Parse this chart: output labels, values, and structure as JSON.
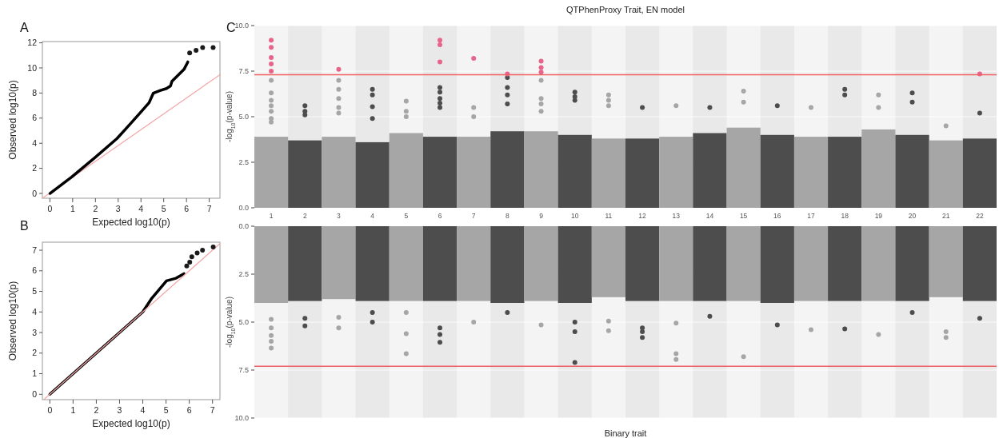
{
  "chart_data": [
    {
      "type": "scatter",
      "xlabel": "Expected log10(p)",
      "ylabel": "Observed log10(p)",
      "annotations": [
        "A"
      ],
      "xlim": [
        -0.33,
        7.47
      ],
      "ylim": [
        -0.38,
        12.1
      ],
      "xticks": [
        0,
        1,
        2,
        3,
        4,
        5,
        6,
        7
      ],
      "yticks": [
        0,
        2,
        4,
        6,
        8,
        10,
        12
      ],
      "grid": false,
      "series": [
        {
          "type": "line",
          "color": "#f4a6a6",
          "x": [
            -0.33,
            7.47
          ],
          "values": [
            -0.38,
            9.46
          ]
        },
        {
          "type": "line",
          "color": "#000000",
          "x": [
            0,
            0.96,
            1.97,
            2.95,
            3.48,
            3.95,
            4.36,
            4.54,
            4.83,
            5.12,
            5.3,
            5.36,
            5.59,
            5.89,
            6.06
          ],
          "values": [
            0,
            1.31,
            2.84,
            4.38,
            5.44,
            6.39,
            7.24,
            7.98,
            8.19,
            8.36,
            8.57,
            8.93,
            9.35,
            9.88,
            10.48
          ]
        },
        {
          "color": "#1a1a1a",
          "x": [
            6.14,
            6.42,
            6.71,
            7.17
          ],
          "values": [
            11.2,
            11.4,
            11.62,
            11.62
          ]
        }
      ]
    },
    {
      "type": "scatter",
      "xlabel": "Expected log10(p)",
      "ylabel": "Observed log10(p)",
      "annotations": [
        "B"
      ],
      "xlim": [
        -0.32,
        7.32
      ],
      "ylim": [
        -0.26,
        7.39
      ],
      "xticks": [
        0,
        1,
        2,
        3,
        4,
        5,
        6,
        7
      ],
      "yticks": [
        0,
        1,
        2,
        3,
        4,
        5,
        6,
        7
      ],
      "grid": false,
      "series": [
        {
          "type": "line",
          "color": "#000000",
          "x": [
            0,
            1,
            2,
            3,
            4,
            4.39,
            5.02,
            5.43,
            5.77
          ],
          "values": [
            0,
            1,
            2,
            3,
            4,
            4.67,
            5.51,
            5.64,
            5.86
          ]
        },
        {
          "type": "line",
          "color": "#f4a6a6",
          "x": [
            -0.25,
            7.3
          ],
          "values": [
            -0.25,
            7.3
          ]
        },
        {
          "color": "#1a1a1a",
          "x": [
            5.89,
            6.02,
            6.11,
            6.34,
            6.57,
            7.03
          ],
          "values": [
            6.23,
            6.42,
            6.68,
            6.87,
            7.0,
            7.16
          ]
        }
      ]
    },
    {
      "type": "scatter",
      "title": "QTPhenProxy Trait, EN model",
      "ylabel": "-log$_{10}$(p-value)",
      "annotations": [
        "C"
      ],
      "categories": [
        "1",
        "2",
        "3",
        "4",
        "5",
        "6",
        "7",
        "8",
        "9",
        "10",
        "11",
        "12",
        "13",
        "14",
        "15",
        "16",
        "17",
        "18",
        "19",
        "20",
        "21",
        "22"
      ],
      "ylim": [
        0,
        10
      ],
      "yticks": [
        {
          "value": 0,
          "label": "0.0"
        },
        {
          "value": 2.5,
          "label": "2.5"
        },
        {
          "value": 5,
          "label": "5.0"
        },
        {
          "value": 7.5,
          "label": "7.5"
        },
        {
          "value": 10,
          "label": "10.0"
        }
      ],
      "grid": "y",
      "ref_lines": [
        {
          "axis": "y",
          "value": 7.3,
          "color": "#ee5f66"
        }
      ],
      "series": [
        {
          "type": "bar",
          "colors": [
            "#a6a6a6",
            "#4d4d4d",
            "#a6a6a6",
            "#4d4d4d",
            "#a6a6a6",
            "#4d4d4d",
            "#a6a6a6",
            "#4d4d4d",
            "#a6a6a6",
            "#4d4d4d",
            "#a6a6a6",
            "#4d4d4d",
            "#a6a6a6",
            "#4d4d4d",
            "#a6a6a6",
            "#4d4d4d",
            "#a6a6a6",
            "#4d4d4d",
            "#a6a6a6",
            "#4d4d4d",
            "#a6a6a6",
            "#4d4d4d"
          ],
          "values": [
            3.9,
            3.7,
            3.9,
            3.6,
            4.1,
            3.9,
            3.9,
            4.2,
            4.2,
            4.0,
            3.8,
            3.8,
            3.9,
            4.1,
            4.4,
            4.0,
            3.9,
            3.9,
            4.3,
            4.0,
            3.7,
            3.8
          ]
        },
        {
          "color": "#a6a6a6",
          "x": [
            "1",
            "1",
            "1",
            "1",
            "1",
            "1",
            "1",
            "3",
            "3",
            "3",
            "3",
            "3",
            "5",
            "5",
            "5",
            "7",
            "7",
            "9",
            "9",
            "9",
            "9",
            "11",
            "11",
            "11",
            "13",
            "15",
            "15",
            "17",
            "19",
            "19",
            "21"
          ],
          "values": [
            7.0,
            6.3,
            5.9,
            5.6,
            5.3,
            4.9,
            4.7,
            7.0,
            6.5,
            6.0,
            5.5,
            5.2,
            5.85,
            5.3,
            5.0,
            5.5,
            5.0,
            7.0,
            6.0,
            5.7,
            5.3,
            6.2,
            5.9,
            5.6,
            5.6,
            6.4,
            5.8,
            5.5,
            6.2,
            5.5,
            4.5
          ]
        },
        {
          "color": "#4d4d4d",
          "x": [
            "2",
            "2",
            "2",
            "4",
            "4",
            "4",
            "4",
            "6",
            "6",
            "6",
            "6",
            "6",
            "8",
            "8",
            "8",
            "8",
            "10",
            "10",
            "10",
            "12",
            "14",
            "16",
            "18",
            "18",
            "20",
            "20",
            "22"
          ],
          "values": [
            5.6,
            5.3,
            5.1,
            6.5,
            6.2,
            5.55,
            4.9,
            6.6,
            6.35,
            6.0,
            5.75,
            5.5,
            7.15,
            6.6,
            6.2,
            5.7,
            6.35,
            6.1,
            5.9,
            5.5,
            5.5,
            5.6,
            6.5,
            6.2,
            6.3,
            5.8,
            5.2
          ]
        },
        {
          "color": "#e7648a",
          "x": [
            "1",
            "1",
            "1",
            "1",
            "1",
            "3",
            "6",
            "6",
            "6",
            "7",
            "8",
            "9",
            "9",
            "9",
            "22"
          ],
          "values": [
            9.2,
            8.8,
            8.25,
            7.9,
            7.5,
            7.6,
            9.2,
            8.95,
            8.0,
            8.2,
            7.35,
            8.05,
            7.7,
            7.45,
            7.35
          ]
        }
      ]
    },
    {
      "type": "scatter",
      "xlabel": "Binary trait",
      "ylabel": "-log$_{10}$(p-value)",
      "categories": [
        null,
        null,
        null,
        null,
        null,
        null,
        null,
        null,
        null,
        null,
        null,
        null,
        null,
        null,
        null,
        null,
        null,
        null,
        null,
        null,
        null,
        null
      ],
      "ylim": [
        10,
        0
      ],
      "yticks": [
        {
          "value": 0,
          "label": "0.0"
        },
        {
          "value": 2.5,
          "label": "2.5"
        },
        {
          "value": 5,
          "label": "5.0"
        },
        {
          "value": 7.5,
          "label": "7.5"
        },
        {
          "value": 10,
          "label": "10.0"
        }
      ],
      "grid": "y",
      "tick_labels": "y",
      "ref_lines": [
        {
          "axis": "y",
          "value": 7.3,
          "color": "#ee5f66"
        }
      ],
      "series": [
        {
          "type": "bar",
          "colors": [
            "#a6a6a6",
            "#4d4d4d",
            "#a6a6a6",
            "#4d4d4d",
            "#a6a6a6",
            "#4d4d4d",
            "#a6a6a6",
            "#4d4d4d",
            "#a6a6a6",
            "#4d4d4d",
            "#a6a6a6",
            "#4d4d4d",
            "#a6a6a6",
            "#4d4d4d",
            "#a6a6a6",
            "#4d4d4d",
            "#a6a6a6",
            "#4d4d4d",
            "#a6a6a6",
            "#4d4d4d",
            "#a6a6a6",
            "#4d4d4d"
          ],
          "values": [
            4.0,
            3.9,
            3.8,
            3.9,
            3.9,
            3.9,
            3.9,
            4.0,
            3.9,
            4.0,
            3.7,
            3.9,
            3.9,
            3.9,
            3.9,
            4.0,
            3.9,
            3.9,
            3.9,
            3.9,
            3.7,
            3.9
          ]
        },
        {
          "color": "#a6a6a6",
          "values": [
            4.85,
            null,
            5.3,
            null,
            6.65,
            null,
            5.0,
            null,
            5.15,
            null,
            5.45,
            null,
            6.95,
            null,
            6.8,
            null,
            5.4,
            null,
            5.65,
            null,
            5.8,
            null
          ]
        },
        {
          "color": "#a6a6a6",
          "values": [
            5.3,
            null,
            4.75,
            null,
            5.6,
            null,
            null,
            null,
            null,
            null,
            4.95,
            null,
            6.65,
            null,
            null,
            null,
            null,
            null,
            null,
            null,
            5.5,
            null
          ]
        },
        {
          "color": "#a6a6a6",
          "values": [
            5.7,
            null,
            null,
            null,
            4.5,
            null,
            null,
            null,
            null,
            null,
            null,
            null,
            5.05,
            null,
            null,
            null,
            null,
            null,
            null,
            null,
            null,
            null
          ]
        },
        {
          "color": "#a6a6a6",
          "values": [
            6.0,
            null,
            null,
            null,
            null,
            null,
            null,
            null,
            null,
            null,
            null,
            null,
            null,
            null,
            null,
            null,
            null,
            null,
            null,
            null,
            null,
            null
          ]
        },
        {
          "color": "#a6a6a6",
          "values": [
            6.35,
            null,
            null,
            null,
            null,
            null,
            null,
            null,
            null,
            null,
            null,
            null,
            null,
            null,
            null,
            null,
            null,
            null,
            null,
            null,
            null,
            null
          ]
        },
        {
          "color": "#4d4d4d",
          "values": [
            null,
            5.2,
            null,
            5.0,
            null,
            6.05,
            null,
            4.5,
            null,
            7.1,
            null,
            5.8,
            null,
            4.7,
            null,
            5.15,
            null,
            5.35,
            null,
            4.5,
            null,
            4.8
          ]
        },
        {
          "color": "#4d4d4d",
          "values": [
            null,
            4.8,
            null,
            4.5,
            null,
            5.65,
            null,
            null,
            null,
            5.5,
            null,
            5.5,
            null,
            null,
            null,
            null,
            null,
            null,
            null,
            null,
            null,
            null
          ]
        },
        {
          "color": "#4d4d4d",
          "values": [
            null,
            null,
            null,
            null,
            null,
            5.3,
            null,
            null,
            null,
            5.0,
            null,
            5.3,
            null,
            null,
            null,
            null,
            null,
            null,
            null,
            null,
            null,
            null
          ]
        }
      ]
    }
  ]
}
